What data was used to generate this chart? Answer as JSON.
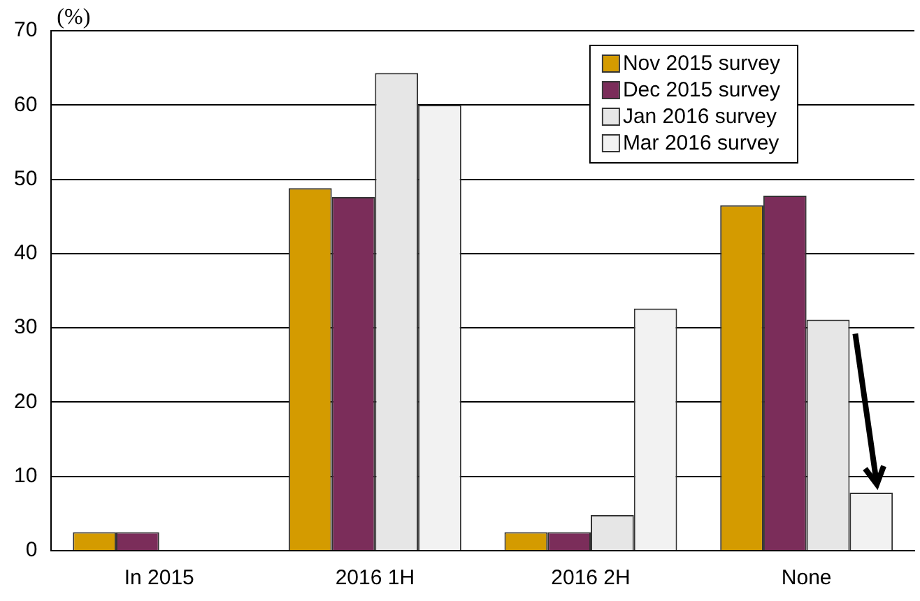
{
  "chart_data": {
    "type": "bar",
    "ylabel": "(%)",
    "categories": [
      "In 2015",
      "2016 1H",
      "2016 2H",
      "None"
    ],
    "series": [
      {
        "name": "Nov 2015 survey",
        "color": "#d49b00",
        "values": [
          2.5,
          48.8,
          2.5,
          46.5
        ]
      },
      {
        "name": "Dec 2015 survey",
        "color": "#7b2d5a",
        "values": [
          2.5,
          47.6,
          2.5,
          47.8
        ]
      },
      {
        "name": "Jan 2016 survey",
        "color": "#e6e6e6",
        "values": [
          0,
          64.3,
          4.8,
          31.1
        ]
      },
      {
        "name": "Mar 2016 survey",
        "color": "#f2f2f2",
        "values": [
          0,
          60,
          32.6,
          7.8
        ]
      }
    ],
    "ylim": [
      0,
      70
    ],
    "yticks": [
      0,
      10,
      20,
      30,
      40,
      50,
      60,
      70
    ],
    "grid": "y",
    "legend": "top right"
  }
}
